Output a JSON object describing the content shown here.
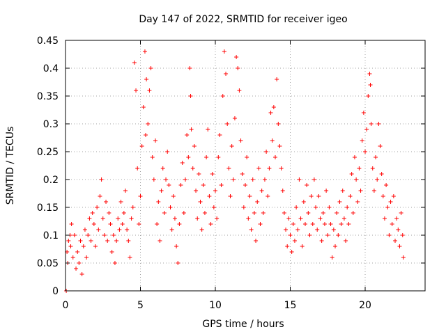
{
  "chart_data": {
    "type": "scatter",
    "title": "Day 147 of 2022, SRMTID for receiver igeo",
    "xlabel": "GPS time / hours",
    "ylabel": "SRMTID / TECUs",
    "xlim": [
      0,
      24
    ],
    "ylim": [
      0,
      0.45
    ],
    "xticks": [
      0,
      5,
      10,
      15,
      20
    ],
    "xtick_labels": [
      "0",
      "5",
      "10",
      "15",
      "20"
    ],
    "yticks": [
      0,
      0.05,
      0.1,
      0.15,
      0.2,
      0.25,
      0.3,
      0.35,
      0.4,
      0.45
    ],
    "ytick_labels": [
      "0",
      "0.05",
      "0.1",
      "0.15",
      "0.2",
      "0.25",
      "0.3",
      "0.35",
      "0.4",
      "0.45"
    ],
    "grid": true,
    "marker": "+",
    "color": "#ff0000",
    "series": [
      {
        "name": "SRMTID",
        "points": [
          [
            0.05,
            0.0
          ],
          [
            0.1,
            0.07
          ],
          [
            0.15,
            0.05
          ],
          [
            0.2,
            0.09
          ],
          [
            0.3,
            0.1
          ],
          [
            0.35,
            0.08
          ],
          [
            0.4,
            0.12
          ],
          [
            0.5,
            0.06
          ],
          [
            0.6,
            0.1
          ],
          [
            0.7,
            0.04
          ],
          [
            0.8,
            0.07
          ],
          [
            0.9,
            0.05
          ],
          [
            1.0,
            0.09
          ],
          [
            1.1,
            0.03
          ],
          [
            1.2,
            0.08
          ],
          [
            1.3,
            0.11
          ],
          [
            1.4,
            0.06
          ],
          [
            1.5,
            0.1
          ],
          [
            1.6,
            0.13
          ],
          [
            1.7,
            0.09
          ],
          [
            1.8,
            0.14
          ],
          [
            1.9,
            0.12
          ],
          [
            2.0,
            0.08
          ],
          [
            2.1,
            0.15
          ],
          [
            2.2,
            0.11
          ],
          [
            2.3,
            0.17
          ],
          [
            2.4,
            0.2
          ],
          [
            2.5,
            0.13
          ],
          [
            2.6,
            0.1
          ],
          [
            2.7,
            0.16
          ],
          [
            2.8,
            0.09
          ],
          [
            2.9,
            0.14
          ],
          [
            3.0,
            0.12
          ],
          [
            3.1,
            0.07
          ],
          [
            3.2,
            0.1
          ],
          [
            3.3,
            0.05
          ],
          [
            3.4,
            0.09
          ],
          [
            3.5,
            0.13
          ],
          [
            3.6,
            0.11
          ],
          [
            3.7,
            0.16
          ],
          [
            3.8,
            0.12
          ],
          [
            3.9,
            0.14
          ],
          [
            4.0,
            0.18
          ],
          [
            4.1,
            0.11
          ],
          [
            4.2,
            0.09
          ],
          [
            4.3,
            0.06
          ],
          [
            4.4,
            0.13
          ],
          [
            4.5,
            0.15
          ],
          [
            4.6,
            0.41
          ],
          [
            4.7,
            0.36
          ],
          [
            4.8,
            0.22
          ],
          [
            4.9,
            0.12
          ],
          [
            5.0,
            0.17
          ],
          [
            5.1,
            0.26
          ],
          [
            5.2,
            0.33
          ],
          [
            5.3,
            0.43
          ],
          [
            5.35,
            0.28
          ],
          [
            5.4,
            0.38
          ],
          [
            5.5,
            0.3
          ],
          [
            5.6,
            0.36
          ],
          [
            5.7,
            0.4
          ],
          [
            5.8,
            0.24
          ],
          [
            5.9,
            0.2
          ],
          [
            6.0,
            0.27
          ],
          [
            6.1,
            0.12
          ],
          [
            6.2,
            0.16
          ],
          [
            6.3,
            0.09
          ],
          [
            6.4,
            0.18
          ],
          [
            6.5,
            0.22
          ],
          [
            6.6,
            0.14
          ],
          [
            6.7,
            0.2
          ],
          [
            6.8,
            0.25
          ],
          [
            6.9,
            0.19
          ],
          [
            7.0,
            0.15
          ],
          [
            7.1,
            0.11
          ],
          [
            7.2,
            0.17
          ],
          [
            7.3,
            0.13
          ],
          [
            7.4,
            0.08
          ],
          [
            7.5,
            0.05
          ],
          [
            7.6,
            0.12
          ],
          [
            7.7,
            0.19
          ],
          [
            7.8,
            0.23
          ],
          [
            7.9,
            0.14
          ],
          [
            8.0,
            0.2
          ],
          [
            8.1,
            0.28
          ],
          [
            8.2,
            0.24
          ],
          [
            8.3,
            0.4
          ],
          [
            8.35,
            0.35
          ],
          [
            8.4,
            0.29
          ],
          [
            8.5,
            0.22
          ],
          [
            8.6,
            0.26
          ],
          [
            8.7,
            0.18
          ],
          [
            8.8,
            0.13
          ],
          [
            8.9,
            0.21
          ],
          [
            9.0,
            0.16
          ],
          [
            9.1,
            0.11
          ],
          [
            9.2,
            0.19
          ],
          [
            9.3,
            0.14
          ],
          [
            9.4,
            0.24
          ],
          [
            9.5,
            0.29
          ],
          [
            9.6,
            0.17
          ],
          [
            9.7,
            0.12
          ],
          [
            9.8,
            0.21
          ],
          [
            9.9,
            0.15
          ],
          [
            10.0,
            0.18
          ],
          [
            10.1,
            0.13
          ],
          [
            10.2,
            0.24
          ],
          [
            10.3,
            0.28
          ],
          [
            10.4,
            0.19
          ],
          [
            10.5,
            0.35
          ],
          [
            10.6,
            0.43
          ],
          [
            10.7,
            0.39
          ],
          [
            10.8,
            0.3
          ],
          [
            10.9,
            0.22
          ],
          [
            11.0,
            0.17
          ],
          [
            11.1,
            0.26
          ],
          [
            11.2,
            0.2
          ],
          [
            11.3,
            0.31
          ],
          [
            11.4,
            0.42
          ],
          [
            11.5,
            0.4
          ],
          [
            11.6,
            0.36
          ],
          [
            11.7,
            0.27
          ],
          [
            11.8,
            0.21
          ],
          [
            11.9,
            0.15
          ],
          [
            12.0,
            0.19
          ],
          [
            12.1,
            0.24
          ],
          [
            12.2,
            0.13
          ],
          [
            12.3,
            0.17
          ],
          [
            12.4,
            0.11
          ],
          [
            12.5,
            0.2
          ],
          [
            12.6,
            0.14
          ],
          [
            12.7,
            0.09
          ],
          [
            12.8,
            0.16
          ],
          [
            12.9,
            0.22
          ],
          [
            13.0,
            0.12
          ],
          [
            13.1,
            0.18
          ],
          [
            13.2,
            0.14
          ],
          [
            13.3,
            0.2
          ],
          [
            13.4,
            0.25
          ],
          [
            13.5,
            0.17
          ],
          [
            13.6,
            0.22
          ],
          [
            13.7,
            0.32
          ],
          [
            13.8,
            0.27
          ],
          [
            13.9,
            0.33
          ],
          [
            14.0,
            0.24
          ],
          [
            14.1,
            0.38
          ],
          [
            14.2,
            0.3
          ],
          [
            14.3,
            0.26
          ],
          [
            14.4,
            0.22
          ],
          [
            14.5,
            0.18
          ],
          [
            14.6,
            0.14
          ],
          [
            14.7,
            0.11
          ],
          [
            14.8,
            0.08
          ],
          [
            14.9,
            0.13
          ],
          [
            15.0,
            0.1
          ],
          [
            15.1,
            0.07
          ],
          [
            15.2,
            0.12
          ],
          [
            15.3,
            0.09
          ],
          [
            15.4,
            0.15
          ],
          [
            15.5,
            0.11
          ],
          [
            15.6,
            0.2
          ],
          [
            15.7,
            0.13
          ],
          [
            15.8,
            0.08
          ],
          [
            15.9,
            0.16
          ],
          [
            16.0,
            0.12
          ],
          [
            16.1,
            0.19
          ],
          [
            16.2,
            0.14
          ],
          [
            16.3,
            0.1
          ],
          [
            16.4,
            0.17
          ],
          [
            16.5,
            0.12
          ],
          [
            16.6,
            0.2
          ],
          [
            16.7,
            0.15
          ],
          [
            16.8,
            0.11
          ],
          [
            16.9,
            0.17
          ],
          [
            17.0,
            0.13
          ],
          [
            17.1,
            0.09
          ],
          [
            17.2,
            0.14
          ],
          [
            17.3,
            0.12
          ],
          [
            17.4,
            0.18
          ],
          [
            17.5,
            0.1
          ],
          [
            17.6,
            0.15
          ],
          [
            17.7,
            0.12
          ],
          [
            17.8,
            0.06
          ],
          [
            17.9,
            0.11
          ],
          [
            18.0,
            0.08
          ],
          [
            18.1,
            0.14
          ],
          [
            18.2,
            0.1
          ],
          [
            18.3,
            0.16
          ],
          [
            18.4,
            0.12
          ],
          [
            18.5,
            0.18
          ],
          [
            18.6,
            0.13
          ],
          [
            18.7,
            0.09
          ],
          [
            18.8,
            0.15
          ],
          [
            18.9,
            0.12
          ],
          [
            19.0,
            0.17
          ],
          [
            19.1,
            0.21
          ],
          [
            19.2,
            0.14
          ],
          [
            19.3,
            0.24
          ],
          [
            19.4,
            0.2
          ],
          [
            19.5,
            0.16
          ],
          [
            19.6,
            0.22
          ],
          [
            19.7,
            0.18
          ],
          [
            19.8,
            0.27
          ],
          [
            19.9,
            0.32
          ],
          [
            20.0,
            0.25
          ],
          [
            20.1,
            0.29
          ],
          [
            20.2,
            0.35
          ],
          [
            20.3,
            0.39
          ],
          [
            20.35,
            0.37
          ],
          [
            20.4,
            0.3
          ],
          [
            20.5,
            0.22
          ],
          [
            20.6,
            0.18
          ],
          [
            20.7,
            0.24
          ],
          [
            20.8,
            0.2
          ],
          [
            20.9,
            0.3
          ],
          [
            21.0,
            0.26
          ],
          [
            21.1,
            0.21
          ],
          [
            21.2,
            0.17
          ],
          [
            21.3,
            0.13
          ],
          [
            21.4,
            0.19
          ],
          [
            21.5,
            0.15
          ],
          [
            21.6,
            0.1
          ],
          [
            21.7,
            0.16
          ],
          [
            21.8,
            0.12
          ],
          [
            21.9,
            0.17
          ],
          [
            22.0,
            0.09
          ],
          [
            22.1,
            0.13
          ],
          [
            22.2,
            0.11
          ],
          [
            22.3,
            0.08
          ],
          [
            22.4,
            0.14
          ],
          [
            22.5,
            0.1
          ],
          [
            22.55,
            0.06
          ]
        ]
      }
    ]
  }
}
